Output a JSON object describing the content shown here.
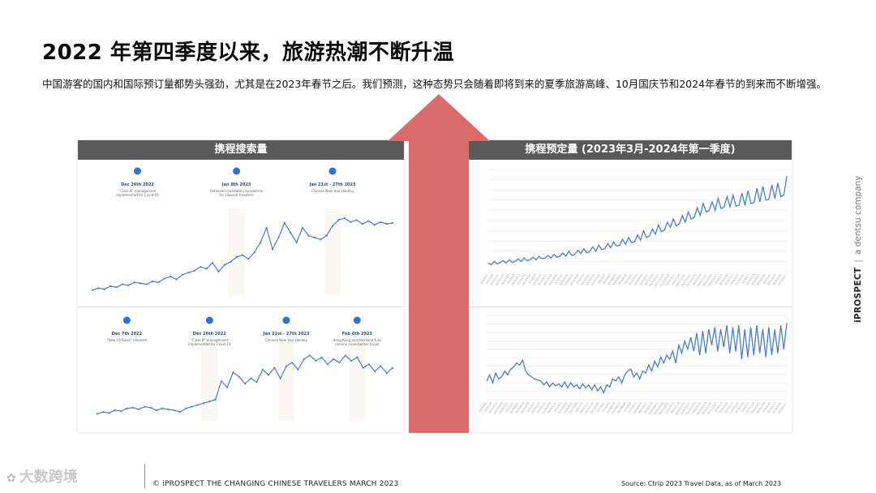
{
  "title": "2022 年第四季度以来，旅游热潮不断升温",
  "subtitle": "中国游客的国内和国际预订量都势头强劲，尤其是在2023年春节之后。我们预测，这种态势只会随着即将到来的夏季旅游高峰、10月国庆节和2024年春节的到来而不断增强。",
  "colors": {
    "arrow": "#d96b6b",
    "line": "#4a7fc1",
    "header": "#595959",
    "marker": "#2e73d0",
    "band": "#faf8f3"
  },
  "brand": {
    "name": "iPROSPECT",
    "tagline": "a dentsu company"
  },
  "footer": {
    "copyright": "© iPROSPECT THE CHANGING CHINESE TRAVELERS MARCH 2023",
    "source": "Source: Ctrip 2023 Travel Data, as of March 2023"
  },
  "watermark": "大数跨境",
  "chart_data": [
    {
      "type": "line",
      "title": "携程搜索量",
      "subcharts": [
        {
          "annotations": [
            {
              "date": "Dec 26th 2022",
              "text": "\"Class B\" management implemented for Covid-19",
              "x": 15
            },
            {
              "date": "Jan 8th 2023",
              "text": "Removed mandatory quarantine for inbound travelers",
              "x": 48
            },
            {
              "date": "Jan 21st - 27th 2023",
              "text": "Chinese New Year Holiday",
              "x": 80
            }
          ],
          "x": [
            0,
            2,
            4,
            6,
            8,
            10,
            12,
            14,
            16,
            18,
            20,
            22,
            24,
            26,
            28,
            30,
            32,
            34,
            36,
            38,
            40,
            42,
            44,
            46,
            48,
            50,
            52,
            54,
            56,
            58,
            60,
            62,
            64,
            66,
            68,
            70,
            72,
            74,
            76,
            78,
            80,
            82,
            84,
            86,
            88,
            90,
            92,
            94,
            96,
            98,
            100
          ],
          "y": [
            6,
            8,
            7,
            10,
            9,
            12,
            11,
            14,
            13,
            12,
            15,
            14,
            18,
            20,
            17,
            22,
            24,
            26,
            30,
            28,
            34,
            25,
            32,
            35,
            40,
            42,
            38,
            45,
            55,
            70,
            48,
            60,
            75,
            65,
            55,
            70,
            62,
            60,
            58,
            62,
            72,
            78,
            80,
            76,
            78,
            74,
            77,
            73,
            76,
            74,
            75
          ]
        },
        {
          "annotations": [
            {
              "date": "Dec 7th 2022",
              "text": "\"New 10 Rules\" released",
              "x": 10
            },
            {
              "date": "Dec 26th 2022",
              "text": "\"Class B\" management implemented for Covid-19",
              "x": 38
            },
            {
              "date": "Jan 21st - 27th 2023",
              "text": "Chinese New Year Holiday",
              "x": 64
            },
            {
              "date": "Feb 6th 2023",
              "text": "Hong Kong and Mainland fully resume cross-border travel",
              "x": 88
            }
          ],
          "x": [
            0,
            2,
            4,
            6,
            8,
            10,
            12,
            14,
            16,
            18,
            20,
            22,
            24,
            26,
            28,
            30,
            32,
            34,
            36,
            38,
            40,
            42,
            44,
            46,
            48,
            50,
            52,
            54,
            56,
            58,
            60,
            62,
            64,
            66,
            68,
            70,
            72,
            74,
            76,
            78,
            80,
            82,
            84,
            86,
            88,
            90,
            92,
            94,
            96,
            98,
            100
          ],
          "y": [
            8,
            10,
            9,
            12,
            11,
            14,
            15,
            13,
            16,
            15,
            12,
            14,
            13,
            12,
            10,
            14,
            16,
            18,
            20,
            22,
            24,
            45,
            38,
            55,
            50,
            42,
            48,
            44,
            58,
            52,
            60,
            48,
            62,
            66,
            58,
            70,
            74,
            68,
            72,
            64,
            70,
            66,
            74,
            68,
            72,
            60,
            64,
            56,
            62,
            54,
            60
          ]
        }
      ]
    },
    {
      "type": "line",
      "title": "携程预定量 (2023年3月-2024年第一季度)",
      "subcharts": [
        {
          "x": [
            0,
            1,
            2,
            3,
            4,
            5,
            6,
            7,
            8,
            9,
            10,
            11,
            12,
            13,
            14,
            15,
            16,
            17,
            18,
            19,
            20,
            21,
            22,
            23,
            24,
            25,
            26,
            27,
            28,
            29,
            30,
            31,
            32,
            33,
            34,
            35,
            36,
            37,
            38,
            39,
            40,
            41,
            42,
            43,
            44,
            45,
            46,
            47,
            48,
            49,
            50,
            51,
            52,
            53,
            54,
            55,
            56,
            57,
            58,
            59,
            60,
            61,
            62,
            63,
            64,
            65,
            66,
            67,
            68,
            69,
            70,
            71,
            72,
            73,
            74,
            75,
            76,
            77,
            78,
            79,
            80,
            81,
            82,
            83,
            84,
            85,
            86,
            87,
            88,
            89,
            90,
            91,
            92,
            93,
            94,
            95,
            96,
            97,
            98,
            99,
            100
          ],
          "y": [
            10,
            8,
            12,
            9,
            11,
            13,
            10,
            14,
            11,
            12,
            15,
            12,
            16,
            13,
            14,
            17,
            14,
            18,
            15,
            16,
            19,
            16,
            20,
            17,
            18,
            22,
            18,
            24,
            19,
            20,
            25,
            21,
            27,
            22,
            24,
            29,
            24,
            31,
            26,
            27,
            33,
            28,
            35,
            30,
            31,
            38,
            32,
            40,
            34,
            35,
            43,
            37,
            48,
            40,
            42,
            50,
            44,
            55,
            47,
            49,
            58,
            52,
            62,
            54,
            56,
            66,
            58,
            70,
            62,
            64,
            75,
            66,
            80,
            70,
            72,
            82,
            72,
            86,
            74,
            76,
            88,
            76,
            90,
            77,
            78,
            92,
            78,
            95,
            80,
            81,
            98,
            82,
            100,
            84,
            85,
            102,
            86,
            104,
            88,
            90,
            112
          ],
          "x_ticks": [
            "2023/3/1",
            "2023/3/8",
            "2023/3/15",
            "2023/3/22",
            "2023/3/29",
            "2023/4/5",
            "2023/4/12",
            "2023/4/19",
            "2023/4/26",
            "2023/5/3",
            "2023/5/10",
            "2023/5/17",
            "2023/5/24",
            "2023/5/31",
            "2023/6/7",
            "2023/6/14",
            "2023/6/21",
            "2023/6/28",
            "2023/7/5",
            "2023/7/12",
            "2023/7/19",
            "2023/7/26",
            "2023/8/2",
            "2023/8/9",
            "2023/8/16",
            "2023/8/23",
            "2023/8/30",
            "2023/9/6",
            "2023/9/13",
            "2023/9/20",
            "2023/9/27",
            "2023/10/4",
            "2023/10/11",
            "2023/10/18",
            "2023/10/25",
            "2023/11/1",
            "2023/11/8",
            "2023/11/15",
            "2023/11/22",
            "2023/11/29",
            "2023/12/6",
            "2023/12/13",
            "2023/12/20",
            "2023/12/27",
            "2024/1/3",
            "2024/1/10",
            "2024/1/17",
            "2024/1/24",
            "2024/1/31",
            "2024/2/7",
            "2024/2/14",
            "2024/2/21",
            "2024/2/28",
            "2024/3/6",
            "2024/3/13",
            "2024/3/20",
            "2024/3/27"
          ]
        },
        {
          "x": [
            0,
            1,
            2,
            3,
            4,
            5,
            6,
            7,
            8,
            9,
            10,
            11,
            12,
            13,
            14,
            15,
            16,
            17,
            18,
            19,
            20,
            21,
            22,
            23,
            24,
            25,
            26,
            27,
            28,
            29,
            30,
            31,
            32,
            33,
            34,
            35,
            36,
            37,
            38,
            39,
            40,
            41,
            42,
            43,
            44,
            45,
            46,
            47,
            48,
            49,
            50,
            51,
            52,
            53,
            54,
            55,
            56,
            57,
            58,
            59,
            60,
            61,
            62,
            63,
            64,
            65,
            66,
            67,
            68,
            69,
            70,
            71,
            72,
            73,
            74,
            75,
            76,
            77,
            78,
            79,
            80,
            81,
            82,
            83,
            84,
            85,
            86,
            87,
            88,
            89,
            90,
            91,
            92,
            93,
            94,
            95,
            96,
            97,
            98,
            99,
            100
          ],
          "y": [
            34,
            40,
            32,
            42,
            36,
            38,
            44,
            40,
            46,
            48,
            52,
            50,
            55,
            44,
            40,
            38,
            36,
            35,
            34,
            30,
            33,
            28,
            32,
            29,
            31,
            28,
            33,
            27,
            32,
            28,
            30,
            26,
            31,
            27,
            30,
            25,
            30,
            24,
            28,
            22,
            30,
            28,
            36,
            34,
            38,
            32,
            40,
            44,
            46,
            38,
            42,
            36,
            44,
            42,
            50,
            44,
            54,
            48,
            58,
            52,
            60,
            56,
            64,
            52,
            70,
            62,
            74,
            66,
            78,
            64,
            82,
            60,
            84,
            62,
            86,
            70,
            88,
            64,
            86,
            68,
            90,
            62,
            88,
            64,
            90,
            56,
            86,
            58,
            88,
            60,
            90,
            62,
            86,
            58,
            88,
            60,
            86,
            62,
            90,
            66,
            92
          ],
          "x_ticks": [
            "2023/3/1",
            "2023/3/8",
            "2023/3/15",
            "2023/3/22",
            "2023/3/29",
            "2023/4/5",
            "2023/4/12",
            "2023/4/19",
            "2023/4/26",
            "2023/5/3",
            "2023/5/10",
            "2023/5/17",
            "2023/5/24",
            "2023/5/31",
            "2023/6/7",
            "2023/6/14",
            "2023/6/21",
            "2023/6/28",
            "2023/7/5",
            "2023/7/12",
            "2023/7/19",
            "2023/7/26",
            "2023/8/2",
            "2023/8/9",
            "2023/8/16",
            "2023/8/23",
            "2023/8/30",
            "2023/9/6",
            "2023/9/13",
            "2023/9/20",
            "2023/9/27",
            "2023/10/4",
            "2023/10/11",
            "2023/10/18",
            "2023/10/25",
            "2023/11/1",
            "2023/11/8",
            "2023/11/15",
            "2023/11/22",
            "2023/11/29",
            "2023/12/6",
            "2023/12/13",
            "2023/12/20",
            "2023/12/27",
            "2024/1/3",
            "2024/1/10",
            "2024/1/17",
            "2024/1/24",
            "2024/1/31",
            "2024/2/7",
            "2024/2/14",
            "2024/2/21",
            "2024/2/28",
            "2024/3/6",
            "2024/3/13",
            "2024/3/20",
            "2024/3/27"
          ]
        }
      ]
    }
  ]
}
